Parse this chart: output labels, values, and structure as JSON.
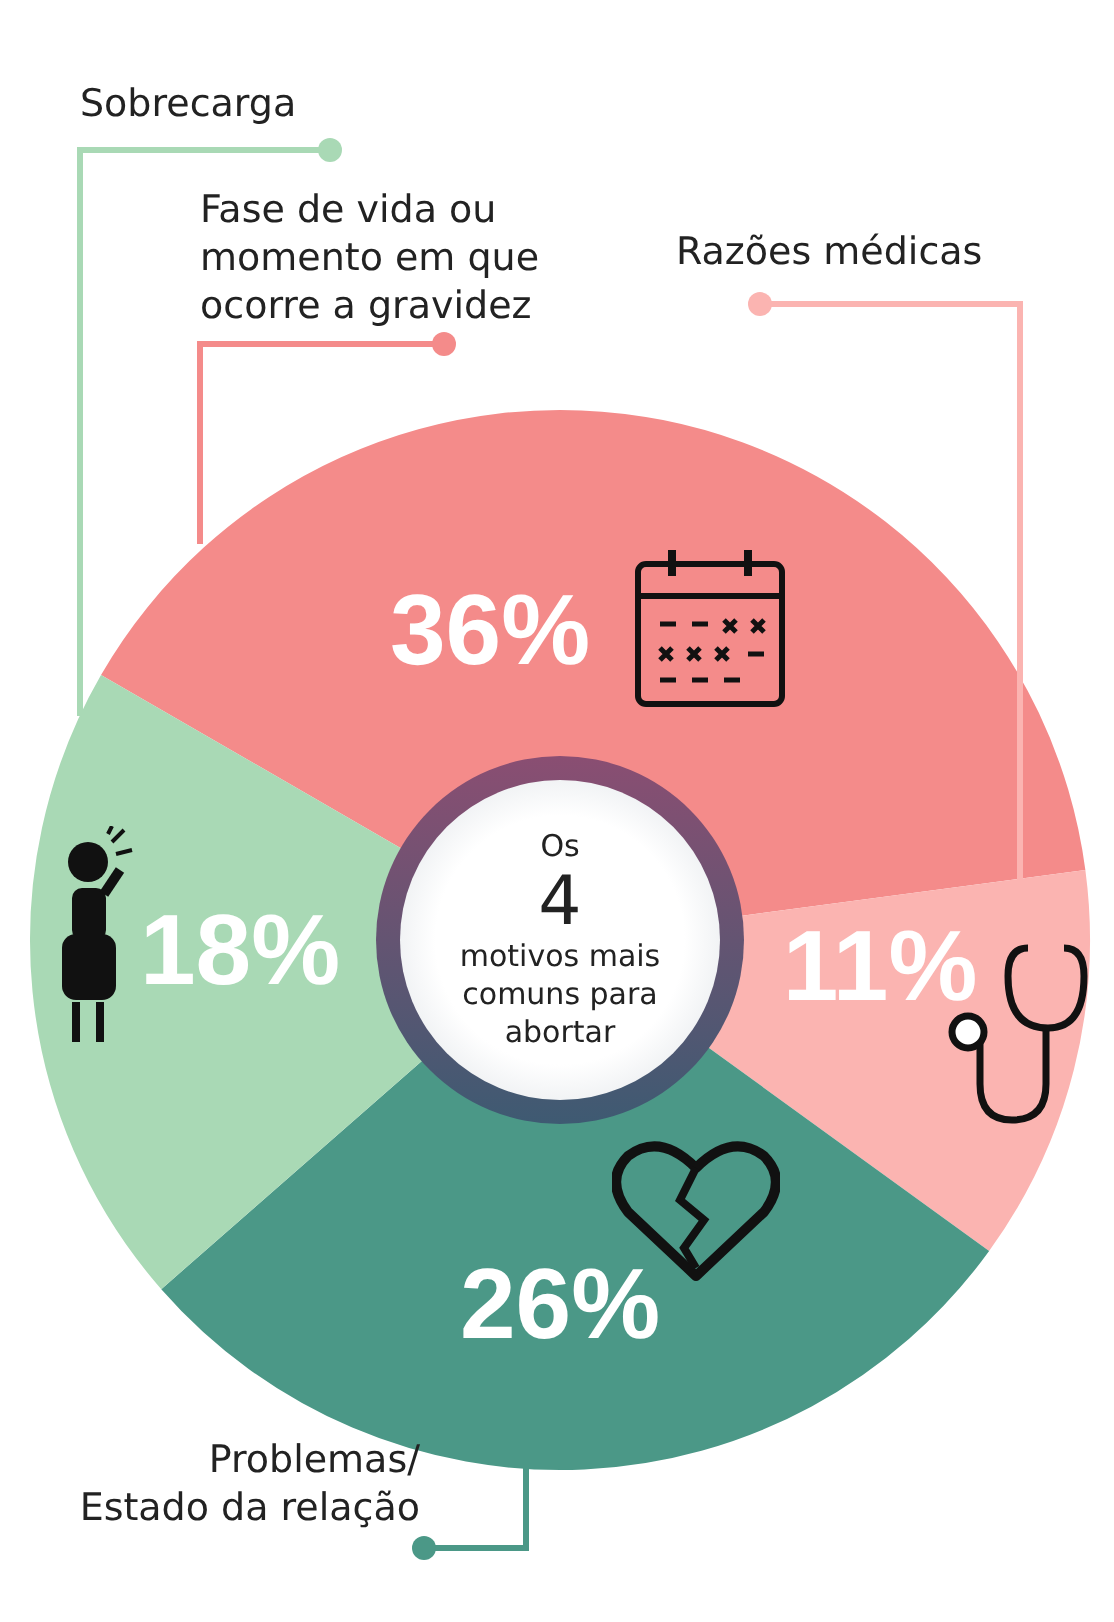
{
  "chart_data": {
    "type": "donut",
    "title": "Os 4 motivos mais comuns para abortar",
    "categories": [
      "Fase de vida ou momento em que ocorre a gravidez",
      "Razões médicas",
      "Problemas/\nEstado da relação",
      "Sobrecarga"
    ],
    "values": [
      36,
      11,
      26,
      18
    ],
    "colors": [
      "#f48b8a",
      "#fbb4b1",
      "#4b9887",
      "#a9d9b5"
    ],
    "value_labels": [
      "36%",
      "11%",
      "26%",
      "18%"
    ],
    "legend": false
  }
}
